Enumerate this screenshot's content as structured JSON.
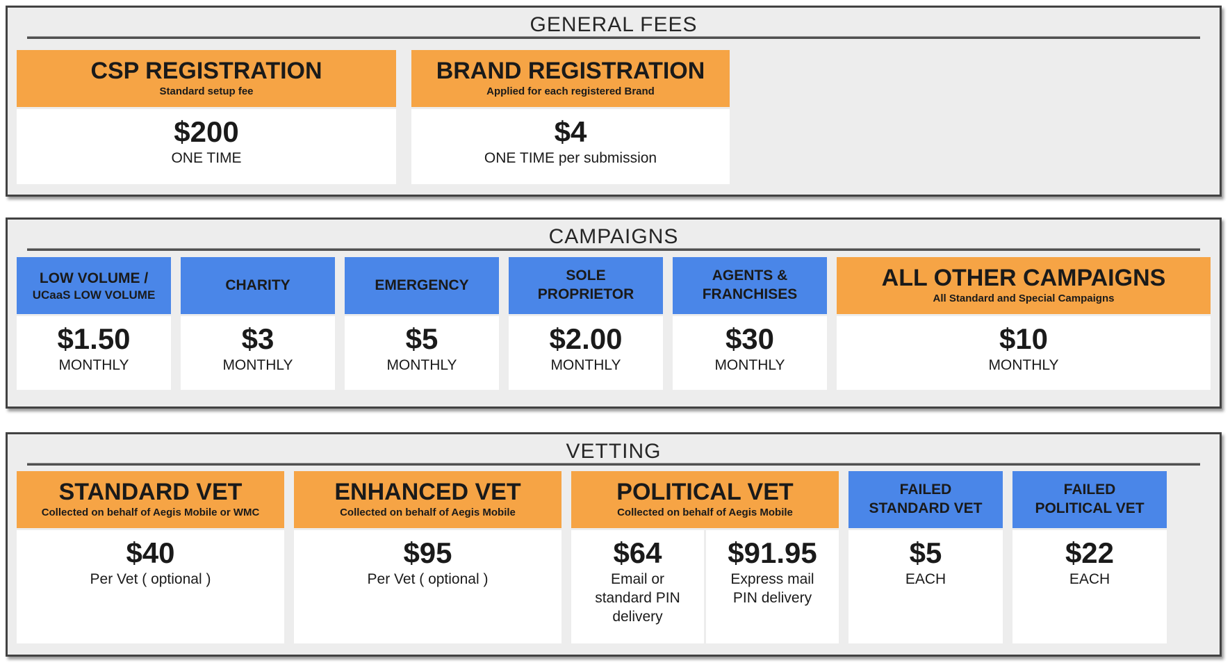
{
  "colors": {
    "orange_header": "#F6A445",
    "blue_header": "#4A86E8",
    "section_background": "#EDEDED",
    "section_border": "#424242"
  },
  "sections": [
    {
      "title": "GENERAL FEES",
      "cards": [
        {
          "style": "orange",
          "title": "CSP REGISTRATION",
          "subtitle": "Standard setup fee",
          "prices": [
            {
              "amount": "$200",
              "term": "ONE TIME"
            }
          ]
        },
        {
          "style": "orange",
          "title": "BRAND REGISTRATION",
          "subtitle": "Applied for each registered Brand",
          "prices": [
            {
              "amount": "$4",
              "term": "ONE TIME per submission"
            }
          ]
        }
      ]
    },
    {
      "title": "CAMPAIGNS",
      "cards": [
        {
          "style": "blue",
          "title": "LOW VOLUME /",
          "title_small": "UCaaS LOW VOLUME",
          "prices": [
            {
              "amount": "$1.50",
              "term": "MONTHLY"
            }
          ]
        },
        {
          "style": "blue",
          "title": "CHARITY",
          "prices": [
            {
              "amount": "$3",
              "term": "MONTHLY"
            }
          ]
        },
        {
          "style": "blue",
          "title": "EMERGENCY",
          "prices": [
            {
              "amount": "$5",
              "term": "MONTHLY"
            }
          ]
        },
        {
          "style": "blue",
          "title": "SOLE\nPROPRIETOR",
          "prices": [
            {
              "amount": "$2.00",
              "term": "MONTHLY"
            }
          ]
        },
        {
          "style": "blue",
          "title": "AGENTS &\nFRANCHISES",
          "prices": [
            {
              "amount": "$30",
              "term": "MONTHLY"
            }
          ]
        },
        {
          "style": "orange",
          "title": "ALL OTHER CAMPAIGNS",
          "subtitle": "All Standard and Special Campaigns",
          "prices": [
            {
              "amount": "$10",
              "term": "MONTHLY"
            }
          ]
        }
      ]
    },
    {
      "title": "VETTING",
      "cards": [
        {
          "style": "orange",
          "title": "STANDARD VET",
          "subtitle": "Collected on behalf of Aegis Mobile or WMC",
          "prices": [
            {
              "amount": "$40",
              "term": "Per Vet ( optional )"
            }
          ]
        },
        {
          "style": "orange",
          "title": "ENHANCED VET",
          "subtitle": "Collected on behalf of Aegis Mobile",
          "prices": [
            {
              "amount": "$95",
              "term": "Per Vet ( optional )"
            }
          ]
        },
        {
          "style": "orange",
          "title": "POLITICAL VET",
          "subtitle": "Collected on behalf of Aegis Mobile",
          "prices": [
            {
              "amount": "$64",
              "term": "Email or standard PIN delivery"
            },
            {
              "amount": "$91.95",
              "term": "Express mail PIN delivery"
            }
          ]
        },
        {
          "style": "blue",
          "title": "FAILED\nSTANDARD VET",
          "prices": [
            {
              "amount": "$5",
              "term": "EACH"
            }
          ]
        },
        {
          "style": "blue",
          "title": "FAILED\nPOLITICAL VET",
          "prices": [
            {
              "amount": "$22",
              "term": "EACH"
            }
          ]
        }
      ]
    }
  ]
}
